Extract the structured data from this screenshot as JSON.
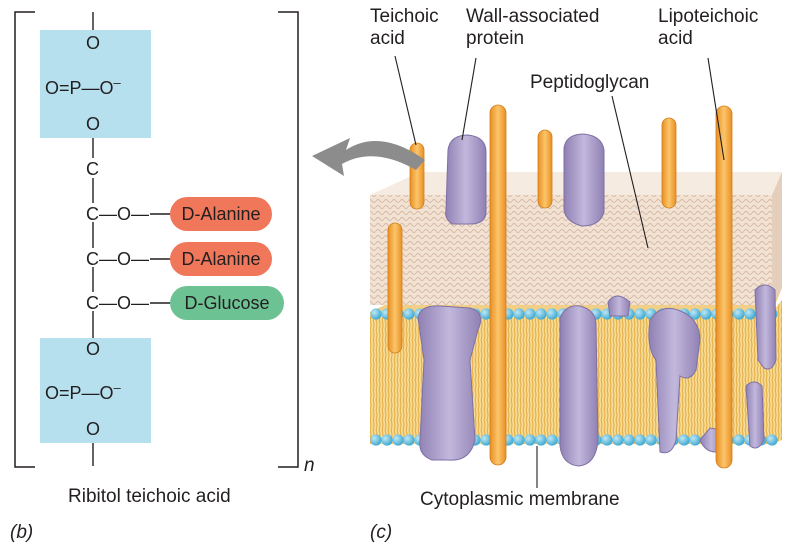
{
  "panel_b": {
    "letter": "(b)",
    "caption": "Ribitol teichoic acid",
    "repeat_subscript": "n",
    "phosphate_top": {
      "o_top": "O",
      "left": "O=P—O",
      "charge": "–",
      "o_bottom": "O"
    },
    "chain": {
      "c1": "C",
      "c2": "C—O—",
      "c3": "C—O—",
      "c4": "C—O—",
      "o_link": "O"
    },
    "phosphate_bottom": {
      "left": "O=P—O",
      "charge": "–",
      "o_bottom": "O"
    },
    "substituents": [
      {
        "text": "D-Alanine",
        "color": "#f0775a"
      },
      {
        "text": "D-Alanine",
        "color": "#f0775a"
      },
      {
        "text": "D-Glucose",
        "color": "#6dc293"
      }
    ],
    "box_color": "#b6e0ee"
  },
  "panel_c": {
    "letter": "(c)",
    "labels": {
      "teichoic_acid": [
        "Teichoic",
        "acid"
      ],
      "wall_protein": [
        "Wall-associated",
        "protein"
      ],
      "lipoteichoic_acid": [
        "Lipoteichoic",
        "acid"
      ],
      "peptidoglycan": "Peptidoglycan",
      "cytoplasmic_membrane": "Cytoplasmic membrane"
    },
    "colors": {
      "peptidoglycan": "#f0e0d2",
      "lipid_head": "#4fb8dc",
      "lipid_tail": "#f3c15a",
      "protein": "#a79ac3",
      "teichoic": "#f6a93b",
      "arrow": "#8a8a8a"
    }
  }
}
